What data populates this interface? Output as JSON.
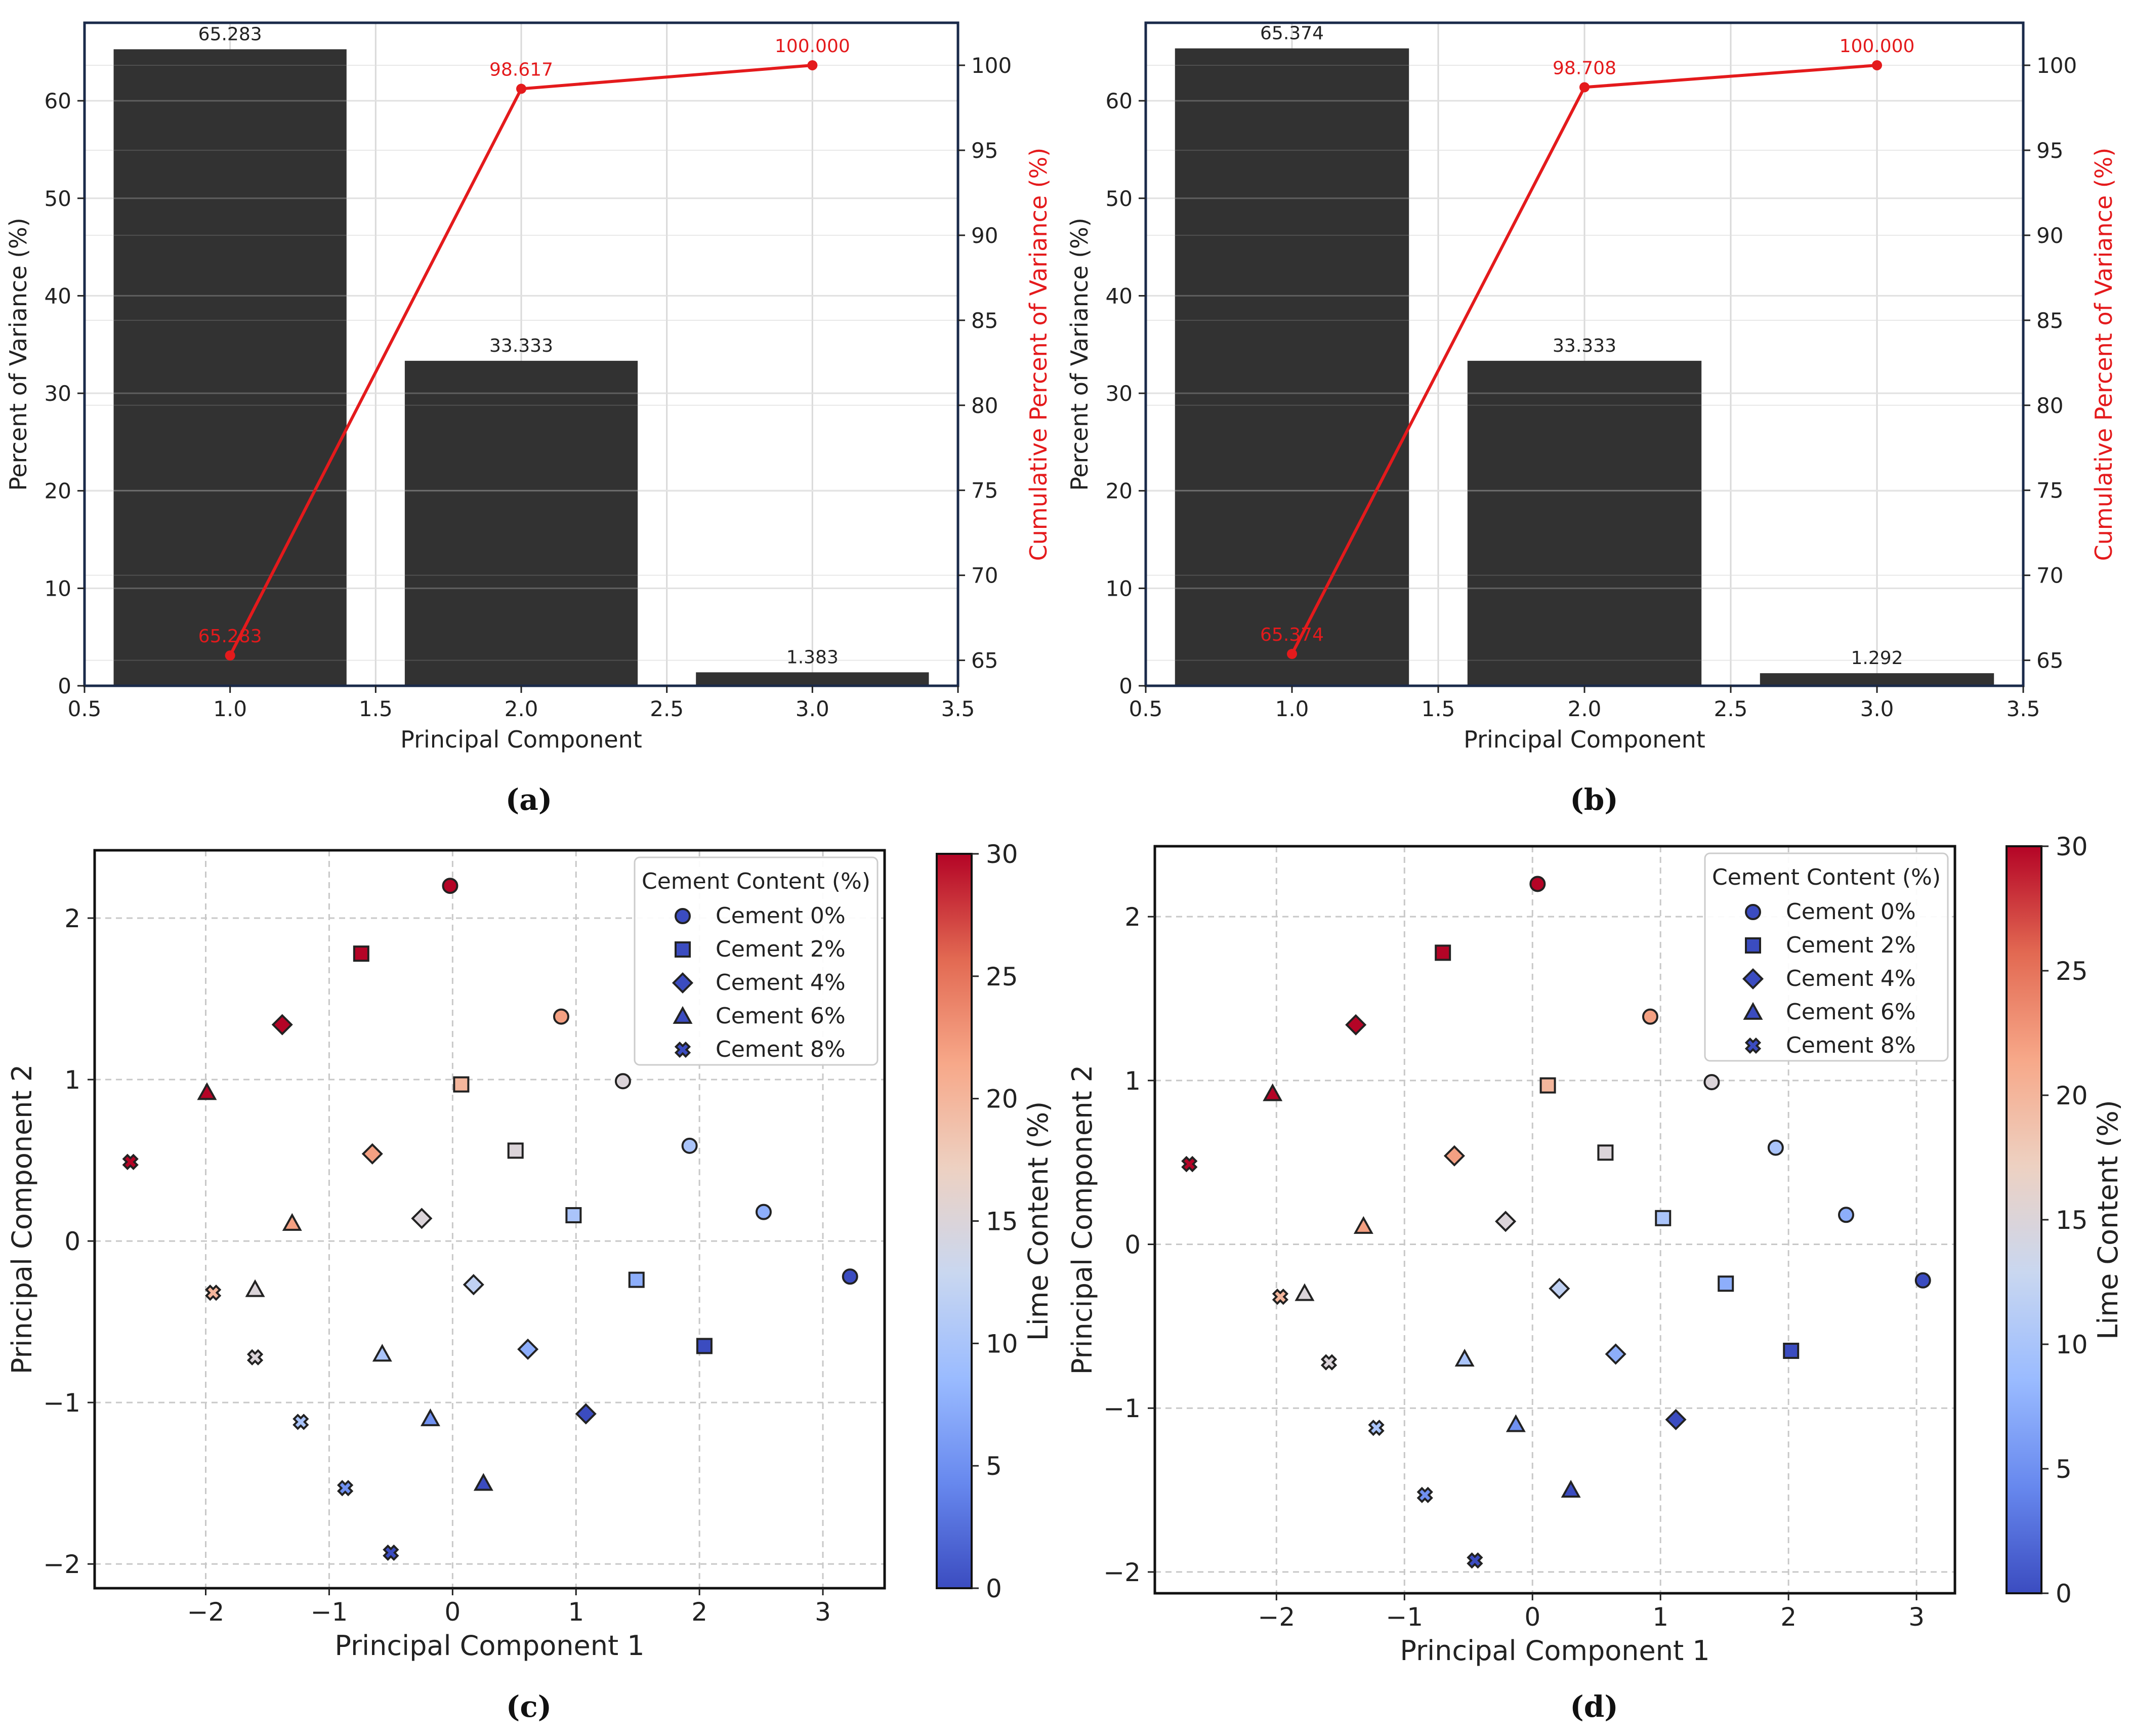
{
  "colors": {
    "bar": "#323232",
    "cumulative": "#e41a1c",
    "frame": "#1a2a4a",
    "grid": "#d9d9d9",
    "scatter_grid": "#c8c8c8",
    "colormap": [
      "#3b4cc0",
      "#6788ee",
      "#9abbff",
      "#c9d7f0",
      "#edd1c2",
      "#f7a889",
      "#e26952",
      "#b40426"
    ]
  },
  "chart_data": [
    {
      "id": "a",
      "type": "bar",
      "panel_label": "(a)",
      "xlabel": "Principal Component",
      "ylabel": "Percent of Variance (%)",
      "y2label": "Cumulative Percent of Variance (%)",
      "xlim": [
        0.5,
        3.5
      ],
      "ylim": [
        0,
        68
      ],
      "y2lim": [
        63.5,
        102.5
      ],
      "xticks": [
        "0.5",
        "1.0",
        "1.5",
        "2.0",
        "2.5",
        "3.0",
        "3.5"
      ],
      "yticks": [
        "0",
        "10",
        "20",
        "30",
        "40",
        "50",
        "60"
      ],
      "y2ticks": [
        "65",
        "70",
        "75",
        "80",
        "85",
        "90",
        "95",
        "100"
      ],
      "categories": [
        1,
        2,
        3
      ],
      "values": [
        65.283,
        33.333,
        1.383
      ],
      "value_labels": [
        "65.283",
        "33.333",
        "1.383"
      ],
      "cumulative": [
        65.283,
        98.617,
        100.0
      ],
      "cumulative_labels": [
        "65.283",
        "98.617",
        "100.000"
      ]
    },
    {
      "id": "b",
      "type": "bar",
      "panel_label": "(b)",
      "xlabel": "Principal Component",
      "ylabel": "Percent of Variance (%)",
      "y2label": "Cumulative Percent of Variance (%)",
      "xlim": [
        0.5,
        3.5
      ],
      "ylim": [
        0,
        68
      ],
      "y2lim": [
        63.5,
        102.5
      ],
      "xticks": [
        "0.5",
        "1.0",
        "1.5",
        "2.0",
        "2.5",
        "3.0",
        "3.5"
      ],
      "yticks": [
        "0",
        "10",
        "20",
        "30",
        "40",
        "50",
        "60"
      ],
      "y2ticks": [
        "65",
        "70",
        "75",
        "80",
        "85",
        "90",
        "95",
        "100"
      ],
      "categories": [
        1,
        2,
        3
      ],
      "values": [
        65.374,
        33.333,
        1.292
      ],
      "value_labels": [
        "65.374",
        "33.333",
        "1.292"
      ],
      "cumulative": [
        65.374,
        98.708,
        100.0
      ],
      "cumulative_labels": [
        "65.374",
        "98.708",
        "100.000"
      ]
    },
    {
      "id": "c",
      "type": "scatter",
      "panel_label": "(c)",
      "xlabel": "Principal Component 1",
      "ylabel": "Principal Component 2",
      "colorbar_label": "Lime Content (%)",
      "colorbar_ticks": [
        "0",
        "5",
        "10",
        "15",
        "20",
        "25",
        "30"
      ],
      "clim": [
        0,
        30
      ],
      "xlim": [
        -2.9,
        3.5
      ],
      "ylim": [
        -2.15,
        2.42
      ],
      "xticks": [
        "−2",
        "−1",
        "0",
        "1",
        "2",
        "3"
      ],
      "yticks": [
        "−2",
        "−1",
        "0",
        "1",
        "2"
      ],
      "legend_title": "Cement Content (%)",
      "legend_entries": [
        "Cement 0%",
        "Cement 2%",
        "Cement 4%",
        "Cement 6%",
        "Cement 8%"
      ],
      "legend_position": "top-right",
      "series": [
        {
          "name": "Cement 0%",
          "marker": "circle",
          "points": [
            {
              "x": 3.22,
              "y": -0.22,
              "lime": 0
            },
            {
              "x": 2.52,
              "y": 0.18,
              "lime": 7.5
            },
            {
              "x": 1.92,
              "y": 0.59,
              "lime": 10
            },
            {
              "x": 1.38,
              "y": 0.99,
              "lime": 15
            },
            {
              "x": 0.88,
              "y": 1.39,
              "lime": 22
            },
            {
              "x": -0.02,
              "y": 2.2,
              "lime": 30
            }
          ]
        },
        {
          "name": "Cement 2%",
          "marker": "square",
          "points": [
            {
              "x": 2.04,
              "y": -0.65,
              "lime": 0
            },
            {
              "x": 1.49,
              "y": -0.24,
              "lime": 7.5
            },
            {
              "x": 0.98,
              "y": 0.16,
              "lime": 10
            },
            {
              "x": 0.51,
              "y": 0.56,
              "lime": 15
            },
            {
              "x": 0.07,
              "y": 0.97,
              "lime": 20
            },
            {
              "x": -0.74,
              "y": 1.78,
              "lime": 30
            }
          ]
        },
        {
          "name": "Cement 4%",
          "marker": "diamond",
          "points": [
            {
              "x": 1.08,
              "y": -1.07,
              "lime": 0
            },
            {
              "x": 0.61,
              "y": -0.67,
              "lime": 7.5
            },
            {
              "x": 0.17,
              "y": -0.27,
              "lime": 12
            },
            {
              "x": -0.25,
              "y": 0.14,
              "lime": 15
            },
            {
              "x": -0.65,
              "y": 0.54,
              "lime": 22
            },
            {
              "x": -1.38,
              "y": 1.34,
              "lime": 30
            }
          ]
        },
        {
          "name": "Cement 6%",
          "marker": "triangle",
          "points": [
            {
              "x": 0.25,
              "y": -1.5,
              "lime": 0
            },
            {
              "x": -0.18,
              "y": -1.1,
              "lime": 5
            },
            {
              "x": -0.57,
              "y": -0.7,
              "lime": 10
            },
            {
              "x": -1.6,
              "y": -0.3,
              "lime": 15
            },
            {
              "x": -1.3,
              "y": 0.11,
              "lime": 22
            },
            {
              "x": -1.99,
              "y": 0.92,
              "lime": 30
            }
          ]
        },
        {
          "name": "Cement 8%",
          "marker": "x",
          "points": [
            {
              "x": -0.5,
              "y": -1.93,
              "lime": 0
            },
            {
              "x": -0.87,
              "y": -1.53,
              "lime": 5
            },
            {
              "x": -1.23,
              "y": -1.12,
              "lime": 10
            },
            {
              "x": -1.6,
              "y": -0.72,
              "lime": 15
            },
            {
              "x": -1.94,
              "y": -0.32,
              "lime": 20
            },
            {
              "x": -2.61,
              "y": 0.49,
              "lime": 30
            }
          ]
        }
      ]
    },
    {
      "id": "d",
      "type": "scatter",
      "panel_label": "(d)",
      "xlabel": "Principal Component 1",
      "ylabel": "Principal Component 2",
      "colorbar_label": "Lime Content (%)",
      "colorbar_ticks": [
        "0",
        "5",
        "10",
        "15",
        "20",
        "25",
        "30"
      ],
      "clim": [
        0,
        30
      ],
      "xlim": [
        -2.95,
        3.3
      ],
      "ylim": [
        -2.13,
        2.43
      ],
      "xticks": [
        "−2",
        "−1",
        "0",
        "1",
        "2",
        "3"
      ],
      "yticks": [
        "−2",
        "−1",
        "0",
        "1",
        "2"
      ],
      "legend_title": "Cement Content (%)",
      "legend_entries": [
        "Cement 0%",
        "Cement 2%",
        "Cement 4%",
        "Cement 6%",
        "Cement 8%"
      ],
      "legend_position": "top-right",
      "series": [
        {
          "name": "Cement 0%",
          "marker": "circle",
          "points": [
            {
              "x": 3.05,
              "y": -0.22,
              "lime": 0
            },
            {
              "x": 2.45,
              "y": 0.18,
              "lime": 7.5
            },
            {
              "x": 1.9,
              "y": 0.59,
              "lime": 10
            },
            {
              "x": 1.4,
              "y": 0.99,
              "lime": 15
            },
            {
              "x": 0.92,
              "y": 1.39,
              "lime": 22
            },
            {
              "x": 0.04,
              "y": 2.2,
              "lime": 30
            }
          ]
        },
        {
          "name": "Cement 2%",
          "marker": "square",
          "points": [
            {
              "x": 2.02,
              "y": -0.65,
              "lime": 0
            },
            {
              "x": 1.51,
              "y": -0.24,
              "lime": 7.5
            },
            {
              "x": 1.02,
              "y": 0.16,
              "lime": 10
            },
            {
              "x": 0.57,
              "y": 0.56,
              "lime": 15
            },
            {
              "x": 0.12,
              "y": 0.97,
              "lime": 20
            },
            {
              "x": -0.7,
              "y": 1.78,
              "lime": 30
            }
          ]
        },
        {
          "name": "Cement 4%",
          "marker": "diamond",
          "points": [
            {
              "x": 1.12,
              "y": -1.07,
              "lime": 0
            },
            {
              "x": 0.65,
              "y": -0.67,
              "lime": 7.5
            },
            {
              "x": 0.21,
              "y": -0.27,
              "lime": 12
            },
            {
              "x": -0.21,
              "y": 0.14,
              "lime": 15
            },
            {
              "x": -0.61,
              "y": 0.54,
              "lime": 22
            },
            {
              "x": -1.38,
              "y": 1.34,
              "lime": 30
            }
          ]
        },
        {
          "name": "Cement 6%",
          "marker": "triangle",
          "points": [
            {
              "x": 0.3,
              "y": -1.5,
              "lime": 0
            },
            {
              "x": -0.13,
              "y": -1.1,
              "lime": 5
            },
            {
              "x": -0.53,
              "y": -0.7,
              "lime": 10
            },
            {
              "x": -1.78,
              "y": -0.3,
              "lime": 15
            },
            {
              "x": -1.32,
              "y": 0.11,
              "lime": 22
            },
            {
              "x": -2.03,
              "y": 0.92,
              "lime": 30
            }
          ]
        },
        {
          "name": "Cement 8%",
          "marker": "x",
          "points": [
            {
              "x": -0.45,
              "y": -1.93,
              "lime": 0
            },
            {
              "x": -0.84,
              "y": -1.53,
              "lime": 5
            },
            {
              "x": -1.22,
              "y": -1.12,
              "lime": 10
            },
            {
              "x": -1.59,
              "y": -0.72,
              "lime": 15
            },
            {
              "x": -1.97,
              "y": -0.32,
              "lime": 20
            },
            {
              "x": -2.68,
              "y": 0.49,
              "lime": 30
            }
          ]
        }
      ]
    }
  ]
}
